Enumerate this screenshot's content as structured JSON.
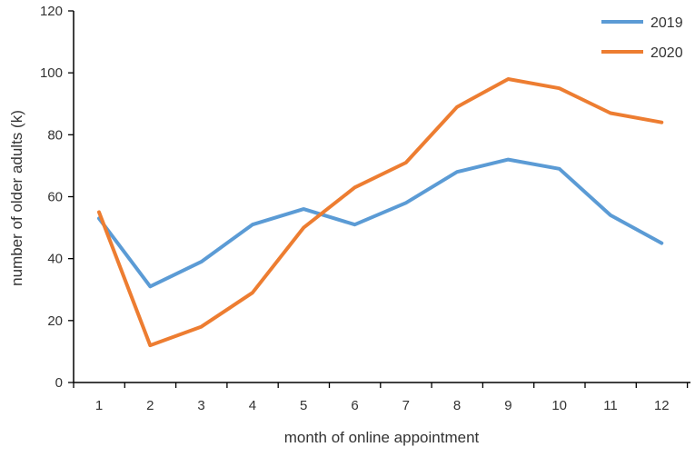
{
  "chart_data": {
    "type": "line",
    "title": "",
    "xlabel": "month of online appointment",
    "ylabel": "number of older adults (k)",
    "categories": [
      "1",
      "2",
      "3",
      "4",
      "5",
      "6",
      "7",
      "8",
      "9",
      "10",
      "11",
      "12"
    ],
    "ylim": [
      0,
      120
    ],
    "yticks": [
      0,
      20,
      40,
      60,
      80,
      100,
      120
    ],
    "grid": false,
    "legend_position": "top-right",
    "series": [
      {
        "name": "2019",
        "color": "#5b9bd5",
        "values": [
          53,
          31,
          39,
          51,
          56,
          51,
          58,
          68,
          72,
          69,
          54,
          45
        ]
      },
      {
        "name": "2020",
        "color": "#ed7d31",
        "values": [
          55,
          12,
          18,
          29,
          50,
          63,
          71,
          89,
          98,
          95,
          87,
          84
        ]
      }
    ]
  }
}
